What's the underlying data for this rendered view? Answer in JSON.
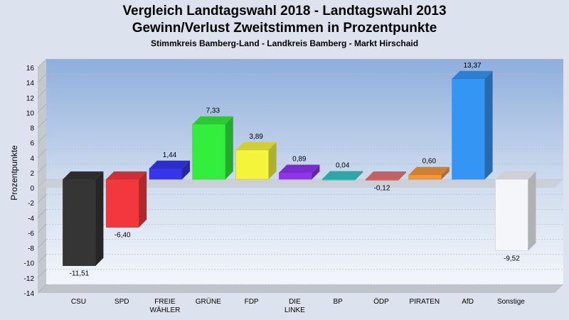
{
  "chart_data": {
    "type": "bar",
    "title": "Vergleich Landtagswahl 2018 - Landtagswahl 2013",
    "subtitle": "Gewinn/Verlust Zweitstimmen in Prozentpunkte",
    "subsubtitle": "Stimmkreis Bamberg-Land - Landkreis Bamberg - Markt Hirschaid",
    "xlabel": "",
    "ylabel": "Prozentpunkte",
    "ylim": [
      -14,
      16
    ],
    "ytick_step": 2,
    "grid": true,
    "categories": [
      [
        "CSU"
      ],
      [
        "SPD"
      ],
      [
        "FREIE",
        "WÄHLER"
      ],
      [
        "GRÜNE"
      ],
      [
        "FDP"
      ],
      [
        "DIE",
        "LINKE"
      ],
      [
        "BP"
      ],
      [
        "ÖDP"
      ],
      [
        "PIRATEN"
      ],
      [
        "AfD"
      ],
      [
        "Sonstige"
      ]
    ],
    "values": [
      -11.51,
      -6.4,
      1.44,
      7.33,
      3.89,
      0.89,
      0.04,
      -0.12,
      0.6,
      13.37,
      -9.52
    ],
    "value_labels": [
      "-11,51",
      "-6,40",
      "1,44",
      "7,33",
      "3,89",
      "0,89",
      "0,04",
      "-0,12",
      "0,60",
      "13,37",
      "-9,52"
    ],
    "colors": [
      "#353535",
      "#f3373d",
      "#3535ee",
      "#33ee3c",
      "#f4f43a",
      "#8f35ee",
      "#35c3c3",
      "#e77073",
      "#f59638",
      "#3595f5",
      "#f4f6fa"
    ]
  }
}
